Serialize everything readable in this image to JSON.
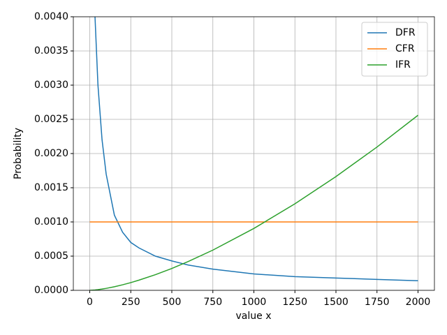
{
  "chart_data": {
    "type": "line",
    "xlabel": "value x",
    "ylabel": "Probability",
    "x": [
      0,
      32,
      50,
      75,
      100,
      150,
      200,
      250,
      300,
      400,
      500,
      600,
      750,
      1000,
      1250,
      1500,
      1750,
      2000
    ],
    "series": [
      {
        "name": "DFR",
        "color": "#1f77b4",
        "values": [
          null,
          0.004,
          0.003,
          0.0022,
          0.0017,
          0.0011,
          0.00085,
          0.0007,
          0.00062,
          0.0005,
          0.00043,
          0.00037,
          0.00031,
          0.00024,
          0.0002,
          0.00018,
          0.00016,
          0.00014
        ]
      },
      {
        "name": "CFR",
        "color": "#ff7f0e",
        "values": [
          0.001,
          0.001,
          0.001,
          0.001,
          0.001,
          0.001,
          0.001,
          0.001,
          0.001,
          0.001,
          0.001,
          0.001,
          0.001,
          0.001,
          0.001,
          0.001,
          0.001,
          0.001
        ]
      },
      {
        "name": "IFR",
        "color": "#2ca02c",
        "values": [
          0,
          5.2e-06,
          1e-05,
          1.86e-05,
          2.86e-05,
          5.26e-05,
          8.09e-05,
          0.000113,
          0.000149,
          0.000229,
          0.00032,
          0.000421,
          0.000588,
          0.000905,
          0.001265,
          0.001663,
          0.002095,
          0.00256
        ]
      }
    ],
    "xlim": [
      -100,
      2100
    ],
    "ylim": [
      0,
      0.004
    ],
    "xticks": [
      0,
      250,
      500,
      750,
      1000,
      1250,
      1500,
      1750,
      2000
    ],
    "yticks": [
      {
        "value": 0,
        "label": "0.0000"
      },
      {
        "value": 0.0005,
        "label": "0.0005"
      },
      {
        "value": 0.001,
        "label": "0.0010"
      },
      {
        "value": 0.0015,
        "label": "0.0015"
      },
      {
        "value": 0.002,
        "label": "0.0020"
      },
      {
        "value": 0.0025,
        "label": "0.0025"
      },
      {
        "value": 0.003,
        "label": "0.0030"
      },
      {
        "value": 0.0035,
        "label": "0.0035"
      },
      {
        "value": 0.004,
        "label": "0.0040"
      }
    ],
    "grid": true,
    "legend": "upper-right"
  }
}
